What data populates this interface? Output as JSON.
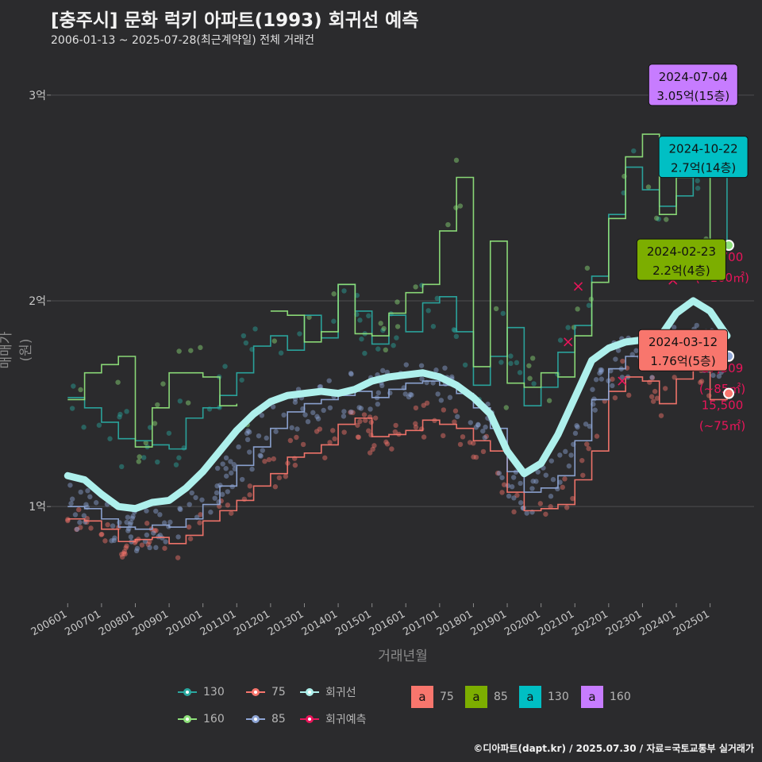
{
  "title": "[충주시] 문화 럭키 아파트(1993) 회귀선 예측",
  "subtitle": "2006-01-13 ~ 2025-07-28(최근계약일) 전체 거래건",
  "caption": "©디아파트(dapt.kr) / 2025.07.30 / 자료=국토교통부 실거래가",
  "colors": {
    "background": "#2b2b2d",
    "grid": "#4d4d4f",
    "s75": "#f8766d",
    "s85": "#8fa6d6",
    "s130": "#2aa8a0",
    "s160": "#8ee07a",
    "trend": "#aef0ec",
    "forecast": "#e8155a",
    "box75": "#f8766d",
    "box85": "#7cae00",
    "box130": "#00bfc4",
    "box160": "#c77cff"
  },
  "chart_data": {
    "type": "line",
    "ylabel": "매매가(원)",
    "xlabel": "거래년월",
    "y_ticks": [
      "1억",
      "2억",
      "3억"
    ],
    "y_tick_values": [
      10000,
      20000,
      30000
    ],
    "ylim": [
      5300,
      32000
    ],
    "xlim": [
      2005.5,
      2026.3
    ],
    "x_ticks": [
      "200601",
      "200701",
      "200801",
      "200901",
      "201001",
      "201101",
      "201201",
      "201301",
      "201401",
      "201501",
      "201601",
      "201701",
      "201801",
      "201901",
      "202001",
      "202101",
      "202201",
      "202301",
      "202401",
      "202501"
    ],
    "x_tick_values": [
      2006,
      2007,
      2008,
      2009,
      2010,
      2011,
      2012,
      2013,
      2014,
      2015,
      2016,
      2017,
      2018,
      2019,
      2020,
      2021,
      2022,
      2023,
      2024,
      2025
    ],
    "grid": true,
    "legend_position": "bottom",
    "series": [
      {
        "name": "75",
        "color_key": "s75",
        "x": [
          2006,
          2006.5,
          2007,
          2007.5,
          2008,
          2008.5,
          2009,
          2009.5,
          2010,
          2010.5,
          2011,
          2011.5,
          2012,
          2012.5,
          2013,
          2013.5,
          2014,
          2014.5,
          2015,
          2015.5,
          2016,
          2016.5,
          2017,
          2017.5,
          2018,
          2018.5,
          2019,
          2019.5,
          2020,
          2020.5,
          2021,
          2021.5,
          2022,
          2022.5,
          2023,
          2023.5,
          2024,
          2024.5,
          2025,
          2025.5
        ],
        "y": [
          9400,
          9300,
          8900,
          8300,
          8400,
          8500,
          8200,
          8600,
          9300,
          9800,
          10300,
          11000,
          11600,
          12400,
          12600,
          13000,
          14000,
          14300,
          13400,
          13500,
          13700,
          14200,
          14000,
          13800,
          13200,
          12700,
          10700,
          9800,
          9900,
          10100,
          11300,
          12700,
          15600,
          16300,
          16100,
          15000,
          16200,
          16600,
          15200,
          15500
        ]
      },
      {
        "name": "85",
        "color_key": "s85",
        "x": [
          2006,
          2006.5,
          2007,
          2007.5,
          2008,
          2008.5,
          2009,
          2009.5,
          2010,
          2010.5,
          2011,
          2011.5,
          2012,
          2012.5,
          2013,
          2013.5,
          2014,
          2014.5,
          2015,
          2015.5,
          2016,
          2016.5,
          2017,
          2017.5,
          2018,
          2018.5,
          2019,
          2019.5,
          2020,
          2020.5,
          2021,
          2021.5,
          2022,
          2022.5,
          2023,
          2023.5,
          2024,
          2024.5,
          2025,
          2025.5
        ],
        "y": [
          10000,
          9900,
          9400,
          9000,
          8900,
          9100,
          9000,
          9400,
          10100,
          11000,
          12000,
          12900,
          13800,
          14600,
          15000,
          15200,
          15400,
          15600,
          15300,
          15700,
          16000,
          16100,
          15900,
          15500,
          14800,
          13800,
          11700,
          10700,
          10900,
          11500,
          13200,
          15200,
          16700,
          17300,
          17500,
          17100,
          17800,
          18100,
          17500,
          17309
        ]
      },
      {
        "name": "130",
        "color_key": "s130",
        "x": [
          2006,
          2006.5,
          2007,
          2007.5,
          2008,
          2008.5,
          2009,
          2009.5,
          2010,
          2010.5,
          2011,
          2011.5,
          2012,
          2012.5,
          2013,
          2013.5,
          2014,
          2014.5,
          2015,
          2015.5,
          2016,
          2016.5,
          2017,
          2017.5,
          2018,
          2018.5,
          2019,
          2019.5,
          2020,
          2020.5,
          2021,
          2021.5,
          2022,
          2022.5,
          2023,
          2023.5,
          2024,
          2024.5,
          2025,
          2025.5
        ],
        "y": [
          15300,
          14800,
          14100,
          13300,
          13200,
          13000,
          12800,
          14300,
          14800,
          15400,
          16500,
          17800,
          18300,
          17600,
          19300,
          18200,
          20800,
          19500,
          17900,
          19300,
          18500,
          19900,
          20200,
          18500,
          15900,
          17300,
          18700,
          14900,
          15800,
          17500,
          18800,
          21200,
          24200,
          26500,
          25400,
          24600,
          25100,
          26100,
          27000,
          22700
        ]
      },
      {
        "name": "160",
        "color_key": "s160",
        "x": [
          2006,
          2006.5,
          2007,
          2007.5,
          2008,
          2008.5,
          2009,
          2009.5,
          2010,
          2010.5,
          2011,
          2011.5,
          2012,
          2012.5,
          2013,
          2013.5,
          2014,
          2014.5,
          2015,
          2015.5,
          2016,
          2016.5,
          2017,
          2017.5,
          2018,
          2018.5,
          2019,
          2019.5,
          2020,
          2020.5,
          2021,
          2021.5,
          2022,
          2022.5,
          2023,
          2023.5,
          2024,
          2024.5,
          2025,
          2025.5
        ],
        "y": [
          15200,
          16500,
          16900,
          17300,
          12900,
          14800,
          16500,
          16500,
          16300,
          14900,
          15000,
          null,
          19500,
          19300,
          18000,
          18500,
          20800,
          18400,
          18300,
          19400,
          20400,
          20800,
          23400,
          26000,
          16800,
          22900,
          16000,
          15800,
          16500,
          16300,
          18300,
          20900,
          24000,
          27000,
          28100,
          24200,
          26000,
          27400,
          22700,
          22700
        ]
      },
      {
        "name": "회귀선",
        "color_key": "trend",
        "x": [
          2006,
          2006.5,
          2007,
          2007.5,
          2008,
          2008.5,
          2009,
          2009.5,
          2010,
          2010.5,
          2011,
          2011.5,
          2012,
          2012.5,
          2013,
          2013.5,
          2014,
          2014.5,
          2015,
          2015.5,
          2016,
          2016.5,
          2017,
          2017.5,
          2018,
          2018.5,
          2019,
          2019.5,
          2020,
          2020.5,
          2021,
          2021.5,
          2022,
          2022.5,
          2023,
          2023.5,
          2024,
          2024.5,
          2025,
          2025.5
        ],
        "y": [
          11500,
          11300,
          10600,
          10000,
          9900,
          10200,
          10300,
          10900,
          11700,
          12700,
          13700,
          14500,
          15100,
          15400,
          15500,
          15600,
          15500,
          15700,
          16100,
          16300,
          16400,
          16500,
          16300,
          15900,
          15300,
          14500,
          12700,
          11600,
          12100,
          13500,
          15300,
          17100,
          17700,
          18000,
          18100,
          18200,
          19400,
          20000,
          19500,
          18300
        ]
      }
    ],
    "point_series": [
      "130",
      "75",
      "85",
      "160"
    ],
    "annotations": [
      {
        "label_line1": "2024-07-04",
        "label_line2": "3.05억(15층)",
        "box_key": "box160",
        "x": 2024.5,
        "y": 30500
      },
      {
        "label_line1": "2024-10-22",
        "label_line2": "2.7억(14층)",
        "box_key": "box130",
        "x": 2024.8,
        "y": 27000
      },
      {
        "label_line1": "2024-02-23",
        "label_line2": "2.2억(4층)",
        "box_key": "box85",
        "x": 2024.15,
        "y": 22000
      },
      {
        "label_line1": "2024-03-12",
        "label_line2": "1.76억(5층)",
        "box_key": "box75",
        "x": 2024.2,
        "y": 17600
      }
    ],
    "forecast_labels": [
      {
        "value": "22,700",
        "area": "(~160㎡)",
        "y": 22700,
        "color_key": "s160"
      },
      {
        "value": "17,309",
        "area": "(~85㎡)",
        "y": 17309,
        "color_key": "s85"
      },
      {
        "value": "15,500",
        "area": "(~75㎡)",
        "y": 15500,
        "color_key": "s75"
      }
    ]
  },
  "legend": {
    "lines": [
      {
        "label": "130",
        "color_key": "s130"
      },
      {
        "label": "75",
        "color_key": "s75"
      },
      {
        "label": "회귀선",
        "color_key": "trend"
      },
      {
        "label": "160",
        "color_key": "s160"
      },
      {
        "label": "85",
        "color_key": "s85"
      },
      {
        "label": "회귀예측",
        "color_key": "forecast"
      }
    ],
    "boxes": [
      {
        "letter": "a",
        "label": "75",
        "color_key": "box75"
      },
      {
        "letter": "a",
        "label": "85",
        "color_key": "box85"
      },
      {
        "letter": "a",
        "label": "130",
        "color_key": "box130"
      },
      {
        "letter": "a",
        "label": "160",
        "color_key": "box160"
      }
    ]
  }
}
